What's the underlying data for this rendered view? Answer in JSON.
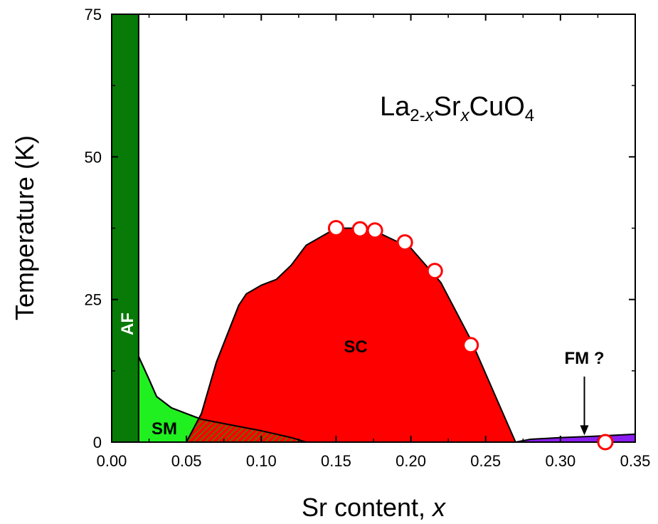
{
  "chart_data": {
    "type": "area",
    "xlabel": "Sr content, ",
    "xlabel_var": "x",
    "ylabel": "Temperature (K)",
    "xlim": [
      0.0,
      0.35
    ],
    "ylim": [
      0,
      75
    ],
    "xticks": [
      "0.00",
      "0.05",
      "0.10",
      "0.15",
      "0.20",
      "0.25",
      "0.30",
      "0.35"
    ],
    "xtick_values": [
      0.0,
      0.05,
      0.1,
      0.15,
      0.2,
      0.25,
      0.3,
      0.35
    ],
    "yticks": [
      "0",
      "25",
      "50",
      "75"
    ],
    "ytick_values": [
      0,
      25,
      50,
      75
    ],
    "grid": false,
    "formula": {
      "parts": [
        {
          "text": "La",
          "sub": false
        },
        {
          "text": "2-",
          "sub": true
        },
        {
          "text": "x",
          "sub": true,
          "italic": true
        },
        {
          "text": "Sr",
          "sub": false
        },
        {
          "text": "x",
          "sub": true,
          "italic": true
        },
        {
          "text": "CuO",
          "sub": false
        },
        {
          "text": "4",
          "sub": true
        }
      ]
    },
    "regions": [
      {
        "name": "AF",
        "label": "AF",
        "color": "#087a08",
        "boundary": [
          [
            0.0,
            0
          ],
          [
            0.0,
            75
          ],
          [
            0.018,
            75
          ],
          [
            0.018,
            0
          ]
        ]
      },
      {
        "name": "SM",
        "label": "SM",
        "color": "#20f020",
        "boundary": [
          [
            0.018,
            0
          ],
          [
            0.018,
            15
          ],
          [
            0.025,
            11
          ],
          [
            0.03,
            8
          ],
          [
            0.04,
            6
          ],
          [
            0.05,
            5
          ],
          [
            0.06,
            4
          ],
          [
            0.08,
            3
          ],
          [
            0.1,
            2
          ],
          [
            0.12,
            0.8
          ],
          [
            0.13,
            0
          ]
        ]
      },
      {
        "name": "SC",
        "label": "SC",
        "color": "#ff0000",
        "boundary": [
          [
            0.05,
            0
          ],
          [
            0.06,
            5
          ],
          [
            0.07,
            14
          ],
          [
            0.085,
            24
          ],
          [
            0.09,
            26
          ],
          [
            0.1,
            27.5
          ],
          [
            0.11,
            28.5
          ],
          [
            0.12,
            31
          ],
          [
            0.13,
            34.5
          ],
          [
            0.15,
            37.5
          ],
          [
            0.17,
            37.5
          ],
          [
            0.18,
            36.5
          ],
          [
            0.2,
            34
          ],
          [
            0.22,
            28
          ],
          [
            0.24,
            18
          ],
          [
            0.26,
            6
          ],
          [
            0.27,
            0
          ]
        ]
      },
      {
        "name": "FM",
        "label": "FM ?",
        "color": "#8a1ef0",
        "boundary": [
          [
            0.27,
            0
          ],
          [
            0.28,
            0.5
          ],
          [
            0.3,
            0.8
          ],
          [
            0.32,
            1.0
          ],
          [
            0.35,
            1.4
          ],
          [
            0.35,
            0
          ]
        ]
      }
    ],
    "overlap": {
      "name": "SM/SC overlap",
      "pattern_colors": [
        "#ff0000",
        "#3a8a00"
      ]
    },
    "points": {
      "name": "Tc",
      "marker_fill": "#ffffff",
      "marker_edge": "#ff0000",
      "x": [
        0.15,
        0.166,
        0.176,
        0.196,
        0.216,
        0.24
      ],
      "y": [
        37.5,
        37.3,
        37.1,
        35.0,
        30.0,
        17.0
      ]
    },
    "open_point": {
      "x": 0.33,
      "y": 0,
      "marker_fill": "none",
      "marker_edge": "#ff0000"
    },
    "annotations": [
      {
        "text": "FM ?",
        "x": 0.316,
        "y": 11.5,
        "arrow_to": [
          0.316,
          1.2
        ]
      }
    ]
  }
}
